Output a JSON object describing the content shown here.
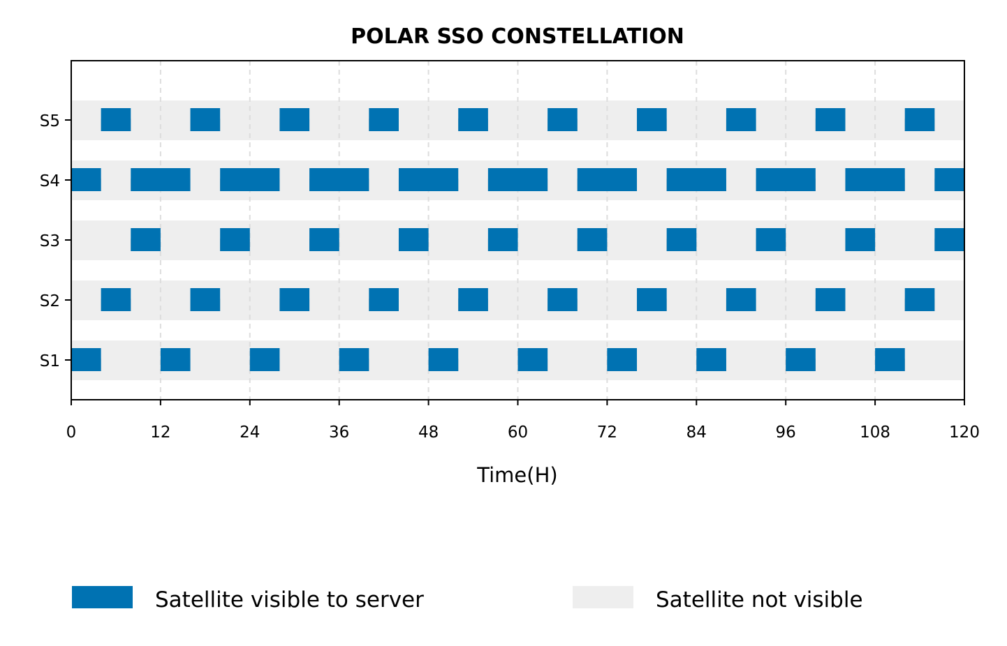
{
  "chart_data": {
    "type": "gantt",
    "title": "POLAR SSO CONSTELLATION",
    "xlabel": "Time(H)",
    "ylabel": "",
    "xlim": [
      0,
      120
    ],
    "xticks": [
      0,
      12,
      24,
      36,
      48,
      60,
      72,
      84,
      96,
      108,
      120
    ],
    "categories": [
      "S1",
      "S2",
      "S3",
      "S4",
      "S5"
    ],
    "grid": "vertical dashed",
    "legend_position": "bottom",
    "legend": [
      {
        "label": "Satellite visible to server",
        "color": "#0072b2"
      },
      {
        "label": "Satellite not visible",
        "color": "#eeeeee"
      }
    ],
    "series": [
      {
        "category": "S1",
        "intervals": [
          [
            0,
            4
          ],
          [
            12,
            16
          ],
          [
            24,
            28
          ],
          [
            36,
            40
          ],
          [
            48,
            52
          ],
          [
            60,
            64
          ],
          [
            72,
            76
          ],
          [
            84,
            88
          ],
          [
            96,
            100
          ],
          [
            108,
            112
          ]
        ]
      },
      {
        "category": "S2",
        "intervals": [
          [
            4,
            8
          ],
          [
            16,
            20
          ],
          [
            28,
            32
          ],
          [
            40,
            44
          ],
          [
            52,
            56
          ],
          [
            64,
            68
          ],
          [
            76,
            80
          ],
          [
            88,
            92
          ],
          [
            100,
            104
          ],
          [
            112,
            116
          ]
        ]
      },
      {
        "category": "S3",
        "intervals": [
          [
            8,
            12
          ],
          [
            20,
            24
          ],
          [
            32,
            36
          ],
          [
            44,
            48
          ],
          [
            56,
            60
          ],
          [
            68,
            72
          ],
          [
            80,
            84
          ],
          [
            92,
            96
          ],
          [
            104,
            108
          ],
          [
            116,
            120
          ]
        ]
      },
      {
        "category": "S4",
        "intervals": [
          [
            0,
            4
          ],
          [
            8,
            16
          ],
          [
            20,
            28
          ],
          [
            32,
            40
          ],
          [
            44,
            52
          ],
          [
            56,
            64
          ],
          [
            68,
            76
          ],
          [
            80,
            88
          ],
          [
            92,
            100
          ],
          [
            104,
            112
          ],
          [
            116,
            120
          ]
        ]
      },
      {
        "category": "S5",
        "intervals": [
          [
            4,
            8
          ],
          [
            16,
            20
          ],
          [
            28,
            32
          ],
          [
            40,
            44
          ],
          [
            52,
            56
          ],
          [
            64,
            68
          ],
          [
            76,
            80
          ],
          [
            88,
            92
          ],
          [
            100,
            104
          ],
          [
            112,
            116
          ]
        ]
      }
    ],
    "colors": {
      "visible": "#0072b2",
      "not_visible": "#eeeeee",
      "shadow": "#999999",
      "grid": "#dddddd"
    }
  }
}
